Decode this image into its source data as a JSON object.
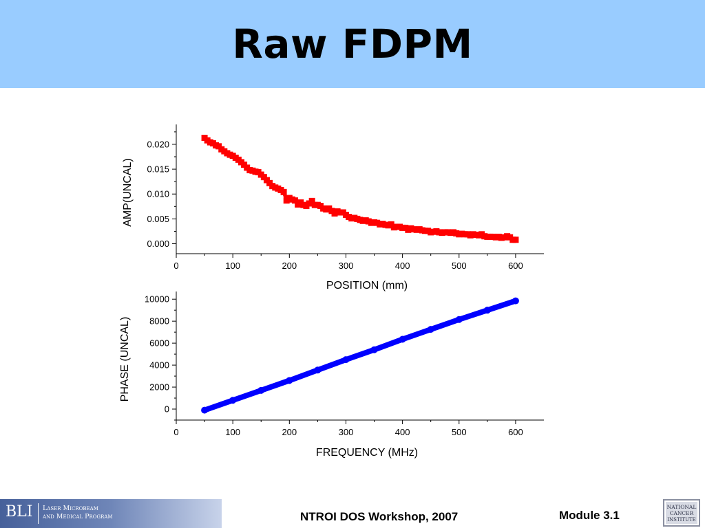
{
  "slide": {
    "title": "Raw FDPM"
  },
  "footer": {
    "logo_abbrev": "BLI",
    "logo_line1": "Laser Microbeam",
    "logo_line2": "and Medical Program",
    "center_text": "NTROI DOS Workshop, 2007",
    "right_text": "Module 3.1",
    "nci_logo_text": [
      "NATIONAL",
      "CANCER",
      "INSTITUTE"
    ]
  },
  "colors": {
    "header_bg": "#99ccff",
    "amp_series": "#ff0000",
    "phase_series": "#0000ff"
  },
  "chart_data": [
    {
      "type": "scatter",
      "title": "",
      "xlabel": "POSITION (mm)",
      "ylabel": "AMP(UNCAL)",
      "xlim": [
        0,
        650
      ],
      "ylim": [
        -0.002,
        0.024
      ],
      "x_ticks": [
        0,
        100,
        200,
        300,
        400,
        500,
        600
      ],
      "x_tick_labels": [
        "0",
        "100",
        "200",
        "300",
        "400",
        "500",
        "600"
      ],
      "y_ticks": [
        0.0,
        0.005,
        0.01,
        0.015,
        0.02
      ],
      "y_tick_labels": [
        "0.000",
        "0.005",
        "0.010",
        "0.015",
        "0.020"
      ],
      "grid": false,
      "marker": "square",
      "series": [
        {
          "color": "#ff0000",
          "x": [
            50,
            55,
            60,
            65,
            70,
            75,
            80,
            85,
            90,
            95,
            100,
            105,
            110,
            115,
            120,
            125,
            130,
            135,
            140,
            145,
            150,
            155,
            160,
            165,
            170,
            175,
            180,
            185,
            190,
            195,
            200,
            205,
            210,
            215,
            220,
            225,
            230,
            235,
            240,
            245,
            250,
            255,
            260,
            265,
            270,
            275,
            280,
            285,
            290,
            295,
            300,
            305,
            310,
            315,
            320,
            325,
            330,
            335,
            340,
            345,
            350,
            355,
            360,
            365,
            370,
            375,
            380,
            385,
            390,
            395,
            400,
            405,
            410,
            415,
            420,
            425,
            430,
            435,
            440,
            445,
            450,
            455,
            460,
            465,
            470,
            475,
            480,
            485,
            490,
            495,
            500,
            505,
            510,
            515,
            520,
            525,
            530,
            535,
            540,
            545,
            550,
            555,
            560,
            565,
            570,
            575,
            580,
            585,
            590,
            595,
            600
          ],
          "y": [
            0.0213,
            0.0208,
            0.0204,
            0.0202,
            0.0198,
            0.0196,
            0.019,
            0.0186,
            0.0182,
            0.0179,
            0.0177,
            0.0173,
            0.0169,
            0.0164,
            0.0159,
            0.0153,
            0.0148,
            0.0147,
            0.0145,
            0.0144,
            0.0139,
            0.0134,
            0.0128,
            0.0122,
            0.0116,
            0.0113,
            0.0111,
            0.0108,
            0.0104,
            0.0087,
            0.0092,
            0.0089,
            0.0087,
            0.0079,
            0.0083,
            0.0078,
            0.0076,
            0.0081,
            0.0086,
            0.0078,
            0.0078,
            0.0076,
            0.0071,
            0.0069,
            0.0071,
            0.0066,
            0.0061,
            0.0065,
            0.0063,
            0.0063,
            0.0058,
            0.0054,
            0.0051,
            0.0052,
            0.005,
            0.0048,
            0.0046,
            0.0047,
            0.0045,
            0.0042,
            0.0043,
            0.0042,
            0.0039,
            0.004,
            0.0038,
            0.0037,
            0.0039,
            0.0033,
            0.0034,
            0.0034,
            0.0032,
            0.0032,
            0.0028,
            0.0031,
            0.0029,
            0.0028,
            0.0029,
            0.0027,
            0.0026,
            0.0026,
            0.0023,
            0.0024,
            0.0025,
            0.0023,
            0.0022,
            0.0023,
            0.0023,
            0.0022,
            0.0023,
            0.0021,
            0.0019,
            0.002,
            0.0019,
            0.0019,
            0.0017,
            0.0019,
            0.0018,
            0.0017,
            0.0019,
            0.0015,
            0.0014,
            0.0014,
            0.0014,
            0.0013,
            0.0014,
            0.0012,
            0.0013,
            0.0015,
            0.0013,
            0.0008,
            0.0008
          ]
        }
      ]
    },
    {
      "type": "scatter",
      "title": "",
      "xlabel": "FREQUENCY (MHz)",
      "ylabel": "PHASE (UNCAL)",
      "xlim": [
        0,
        650
      ],
      "ylim": [
        -1000,
        10700
      ],
      "x_ticks": [
        0,
        100,
        200,
        300,
        400,
        500,
        600
      ],
      "x_tick_labels": [
        "0",
        "100",
        "200",
        "300",
        "400",
        "500",
        "600"
      ],
      "y_ticks": [
        0,
        2000,
        4000,
        6000,
        8000,
        10000
      ],
      "y_tick_labels": [
        "0",
        "2000",
        "4000",
        "6000",
        "8000",
        "10000"
      ],
      "grid": false,
      "marker": "circle",
      "series": [
        {
          "color": "#0000ff",
          "x": [
            50,
            100,
            150,
            200,
            250,
            300,
            350,
            400,
            450,
            500,
            550,
            600
          ],
          "y": [
            -100,
            800,
            1700,
            2600,
            3550,
            4500,
            5400,
            6350,
            7250,
            8150,
            9000,
            9850
          ]
        }
      ]
    }
  ]
}
